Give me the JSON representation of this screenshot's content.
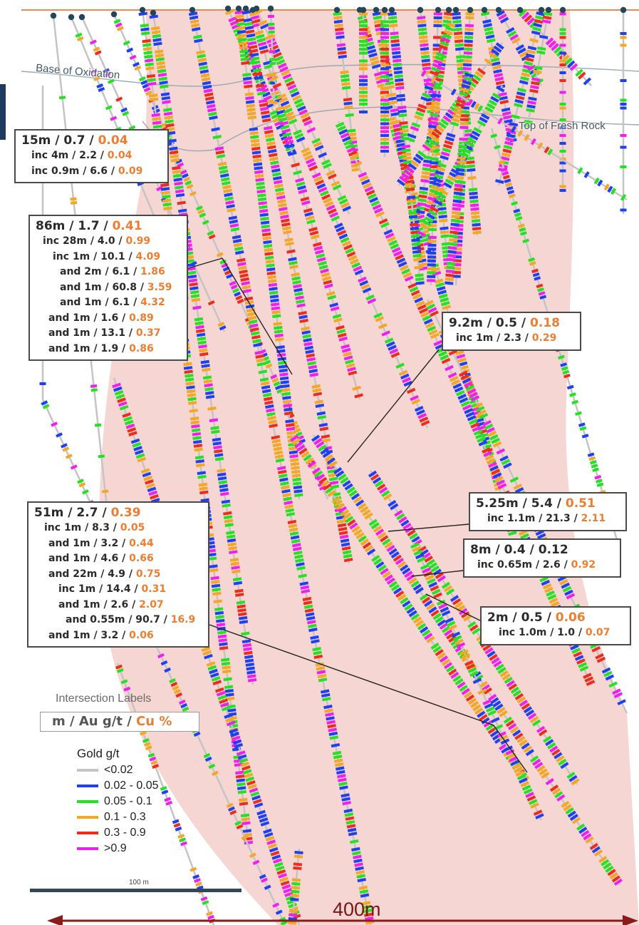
{
  "colors": {
    "halo": "#f6d6d2",
    "trace": "#c4c4c4",
    "topo": "#ec8a4f",
    "collar": "#22475a",
    "surface": "#9aa9b3",
    "cu": "#ed7d31",
    "bins": [
      "#1f3ff5",
      "#22e222",
      "#f5a623",
      "#f02b1c",
      "#f21ef0"
    ]
  },
  "zones": {
    "base_oxidation": "Base of Oxidation",
    "top_fresh_rock": "Top of Fresh Rock"
  },
  "intersections": [
    {
      "header": {
        "m": "15m / 0.7 / ",
        "cu": "0.04"
      },
      "lines": [
        {
          "m": "inc  4m / 2.2 / ",
          "cu": "0.04"
        },
        {
          "m": "inc 0.9m / 6.6 / ",
          "cu": "0.09"
        }
      ]
    },
    {
      "header": {
        "m": "86m / 1.7 / ",
        "cu": "0.41"
      },
      "lines": [
        {
          "m": "inc  28m / 4.0 / ",
          "cu": "0.99"
        },
        {
          "m": "inc 1m / 10.1 / ",
          "cu": "4.09"
        },
        {
          "m": "and 2m / 6.1 / ",
          "cu": "1.86"
        },
        {
          "m": "and 1m / 60.8 / ",
          "cu": "3.59"
        },
        {
          "m": "and 1m / 6.1 / ",
          "cu": "4.32"
        },
        {
          "m": "and 1m / 1.6 / ",
          "cu": "0.89"
        },
        {
          "m": "and 1m / 13.1 / ",
          "cu": "0.37"
        },
        {
          "m": "and 1m / 1.9 / ",
          "cu": "0.86"
        }
      ]
    },
    {
      "header": {
        "m": "9.2m / 0.5 / ",
        "cu": "0.18"
      },
      "lines": [
        {
          "m": "inc  1m / 2.3 / ",
          "cu": "0.29"
        }
      ]
    },
    {
      "header": {
        "m": "5.25m / 5.4 / ",
        "cu": "0.51"
      },
      "lines": [
        {
          "m": "inc  1.1m / 21.3 / ",
          "cu": "2.11"
        }
      ]
    },
    {
      "header": {
        "m": "8m / 0.4 / 0.12",
        "cu": ""
      },
      "lines": [
        {
          "m": "inc  0.65m / 2.6 / ",
          "cu": "0.92"
        }
      ]
    },
    {
      "header": {
        "m": "2m / 0.5 / ",
        "cu": "0.06"
      },
      "lines": [
        {
          "m": "inc  1.0m / 1.0 / ",
          "cu": "0.07"
        }
      ]
    },
    {
      "header": {
        "m": "51m / 2.7 / ",
        "cu": "0.39"
      },
      "lines": [
        {
          "m": "inc  1m / 8.3 / ",
          "cu": "0.05"
        },
        {
          "m": "and 1m / 3.2 / ",
          "cu": "0.44"
        },
        {
          "m": "and 1m / 4.6 / ",
          "cu": "0.66"
        },
        {
          "m": "and 22m / 4.9 / ",
          "cu": "0.75"
        },
        {
          "m": "inc 1m / 14.4 / ",
          "cu": "0.31"
        },
        {
          "m": "and 1m / 2.6 / ",
          "cu": "2.07"
        },
        {
          "m": "and 0.55m / 90.7 / ",
          "cu": "16.9"
        },
        {
          "m": "and 1m / 3.2 / ",
          "cu": "0.06"
        }
      ]
    }
  ],
  "legend": {
    "title": "Intersection Labels",
    "key_m": "m / Au g/t  / ",
    "key_cu": "Cu %",
    "gold_title": "Gold g/t",
    "items": [
      {
        "label": "<0.02",
        "color": "#c4c4c4"
      },
      {
        "label": "0.02 - 0.05",
        "color": "#1f3ff5"
      },
      {
        "label": "0.05 - 0.1",
        "color": "#22e222"
      },
      {
        "label": "0.1 - 0.3",
        "color": "#f5a623"
      },
      {
        "label": "0.3 - 0.9",
        "color": "#f02b1c"
      },
      {
        "label": ">0.9",
        "color": "#f21ef0"
      }
    ]
  },
  "scale": {
    "bar_label": "100 m",
    "width_label": "400m"
  }
}
